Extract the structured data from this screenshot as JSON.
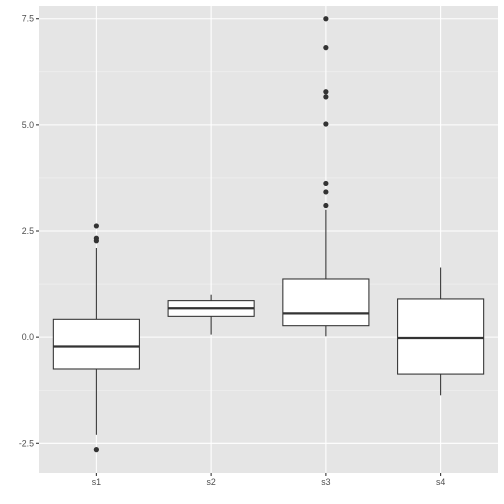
{
  "chart_data": {
    "type": "boxplot",
    "categories": [
      "s1",
      "s2",
      "s3",
      "s4"
    ],
    "y_ticks": [
      -2.5,
      0.0,
      2.5,
      5.0,
      7.5
    ],
    "y_tick_labels": [
      "-2.5",
      "0.0",
      "2.5",
      "5.0",
      "7.5"
    ],
    "ylim": [
      -3.2,
      7.8
    ],
    "grid": true,
    "colors": {
      "panel_bg": "#e5e5e5",
      "grid_major": "#ffffff",
      "grid_minor": "#f2f2f2",
      "box_fill": "#ffffff",
      "box_stroke": "#333333",
      "tick_text": "#4d4d4d"
    },
    "boxes": [
      {
        "label": "s1",
        "lower_whisker": -2.3,
        "q1": -0.75,
        "median": -0.22,
        "q3": 0.42,
        "upper_whisker": 2.1,
        "outliers": [
          2.62,
          2.33,
          2.27,
          -2.65
        ]
      },
      {
        "label": "s2",
        "lower_whisker": 0.06,
        "q1": 0.49,
        "median": 0.68,
        "q3": 0.86,
        "upper_whisker": 1.0,
        "outliers": []
      },
      {
        "label": "s3",
        "lower_whisker": 0.02,
        "q1": 0.27,
        "median": 0.56,
        "q3": 1.37,
        "upper_whisker": 3.0,
        "outliers": [
          7.5,
          6.82,
          5.78,
          5.66,
          5.02,
          3.62,
          3.42,
          3.1
        ]
      },
      {
        "label": "s4",
        "lower_whisker": -1.37,
        "q1": -0.87,
        "median": -0.02,
        "q3": 0.9,
        "upper_whisker": 1.64,
        "outliers": []
      }
    ]
  }
}
